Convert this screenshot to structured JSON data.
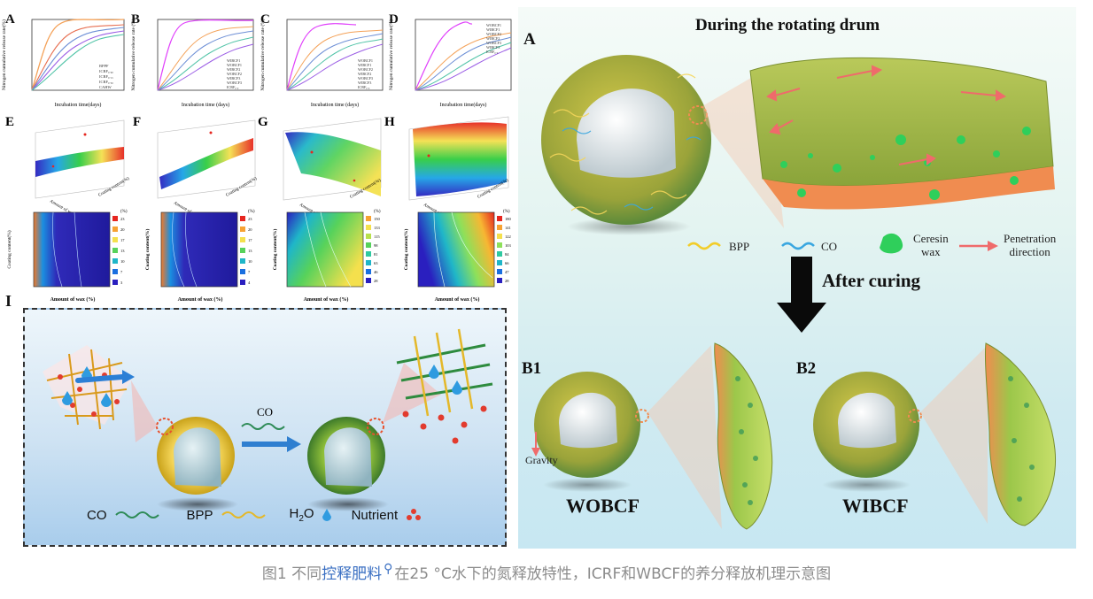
{
  "panels": {
    "release": [
      {
        "letter": "A",
        "ylabel": "Nitrogen cumulative release rate(%)",
        "xlabel": "Incubation time(days)",
        "legend": [
          "BPPF",
          "ICRF₀.₀₀",
          "ICRF₀.₁₅",
          "ICRF₀.₃₀",
          "CAHW"
        ]
      },
      {
        "letter": "B",
        "ylabel": "Nitrogen cumulative release rate (%)",
        "xlabel": "Incubation time (days)",
        "legend": [
          "WIBCF1",
          "WOBCF1",
          "WIBCF2",
          "WOBCF2",
          "WIBCF3",
          "WOBCF3",
          "ICRF₀.₀"
        ]
      },
      {
        "letter": "C",
        "ylabel": "Nitrogen cumulative release rate (%)",
        "xlabel": "Incubation time (days)",
        "legend": [
          "WOBCF1",
          "WIBCF1",
          "WOBCF2",
          "WIBCF2",
          "WOBCF3",
          "WIBCF3",
          "ICRF₀.₀"
        ]
      },
      {
        "letter": "D",
        "ylabel": "Nitrogen cumulative release rate(%)",
        "xlabel": "Incubation time(days)",
        "legend": [
          "WOBCF1",
          "WIBCF1",
          "WOBCF2",
          "WIBCF2",
          "WOBCF3",
          "WIBCF3",
          "ICRF₀.₀"
        ]
      }
    ],
    "surfaces": [
      {
        "letter": "E",
        "axis_a": "Amount of wax (%)",
        "axis_b": "Coating content(%)"
      },
      {
        "letter": "F",
        "axis_a": "Amount of wax (%)",
        "axis_b": "Coating content(%)"
      },
      {
        "letter": "G",
        "axis_a": "Amount of wax (%)",
        "axis_b": "Coating content(%)"
      },
      {
        "letter": "H",
        "axis_a": "Amount of wax (%)",
        "axis_b": "Coating content(%)"
      }
    ],
    "contours": [
      {
        "ylabel": "Coating content(%)",
        "xlabel": "Amount of wax (%)",
        "unit": "(%)",
        "levels": [
          "23",
          "20",
          "17",
          "13",
          "10",
          "7",
          "3"
        ]
      },
      {
        "ylabel": "Coating content(%)",
        "xlabel": "Amount of wax (%)",
        "unit": "(%)",
        "levels": [
          "23",
          "20",
          "17",
          "13",
          "10",
          "7",
          "4"
        ]
      },
      {
        "ylabel": "Coating content(%)",
        "xlabel": "Amount of wax (%)",
        "unit": "(%)",
        "levels": [
          "150",
          "133",
          "115",
          "98",
          "81",
          "63",
          "46",
          "28"
        ]
      },
      {
        "ylabel": "Coating content(%)",
        "xlabel": "Amount of wax (%)",
        "unit": "(%)",
        "levels": [
          "180",
          "141",
          "122",
          "103",
          "84",
          "66",
          "47",
          "28"
        ]
      }
    ]
  },
  "panel_i": {
    "letter": "I",
    "arrow_label": "CO",
    "legend": {
      "co": "CO",
      "bpp": "BPP",
      "h2o_main": "H",
      "h2o_sub": "2",
      "h2o_tail": "O",
      "nutrient": "Nutrient"
    }
  },
  "right": {
    "title": "During the rotating drum",
    "letter_a": "A",
    "legend": {
      "bpp": "BPP",
      "co": "CO",
      "wax_line1": "Ceresin",
      "wax_line2": "wax",
      "pen_line1": "Penetration",
      "pen_line2": "direction"
    },
    "after_curing": "After curing",
    "b1": "B1",
    "b2": "B2",
    "gravity": "Gravity",
    "label_b1": "WOBCF",
    "label_b2": "WIBCF"
  },
  "caption": {
    "prefix": "图1 不同",
    "link": "控释肥料",
    "suffix": "在25 °C水下的氮释放特性，ICRF和WBCF的养分释放机理示意图"
  },
  "colors": {
    "caption_gray": "#8c8c8c",
    "link_blue": "#3a6fc2",
    "wax_green": "#2fcf5b",
    "coat_orange": "#f08c50",
    "bpp_yellow": "#f2cd2a",
    "co_blue": "#3aa7e0"
  }
}
